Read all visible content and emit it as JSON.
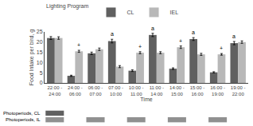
{
  "chart_data": {
    "type": "bar",
    "xlabel": "Time",
    "ylabel": "Food Intake per bird, g",
    "legend_title": "Lighting Program",
    "legend": "upper left",
    "grid": false,
    "categories": [
      "22:00 - 24:00",
      "24:00 - 06:00",
      "06:00 - 07:00",
      "07:00 - 10:00",
      "10:00 - 11:00",
      "11:00 - 14:00",
      "14:00 - 15:00",
      "15:00 - 16:00",
      "16:00 - 19:00",
      "19:00 - 22:00"
    ],
    "series": [
      {
        "name": "CL",
        "color": "#606060",
        "values": [
          22.0,
          3.5,
          14.5,
          20.5,
          6.0,
          23.5,
          7.0,
          21.5,
          5.2,
          19.5
        ],
        "errors": [
          0.7,
          0.3,
          0.6,
          0.9,
          0.4,
          0.8,
          0.4,
          0.7,
          0.3,
          0.8
        ],
        "annotations": [
          null,
          null,
          null,
          "a",
          null,
          "a",
          null,
          "a",
          null,
          "a"
        ]
      },
      {
        "name": "IEL",
        "color": "#b8b8b8",
        "values": [
          22.0,
          15.5,
          16.5,
          8.0,
          14.8,
          14.8,
          17.5,
          14.0,
          14.0,
          20.0
        ],
        "errors": [
          0.6,
          0.5,
          0.6,
          0.5,
          0.5,
          0.5,
          0.6,
          0.5,
          0.4,
          0.6
        ],
        "annotations": [
          null,
          "+",
          null,
          null,
          "+",
          null,
          "+",
          null,
          "+",
          null
        ]
      }
    ],
    "photoperiods": [
      {
        "label": "Photoperiods, CL",
        "color": "#606060",
        "categories": [
          "22:00 - 24:00"
        ]
      },
      {
        "label": "Photoperiods, IL",
        "color": "#909090",
        "categories": [
          "22:00 - 24:00",
          "06:00 - 07:00",
          "10:00 - 11:00",
          "14:00 - 15:00",
          "16:00 - 19:00"
        ]
      }
    ],
    "ylim": [
      0,
      25
    ],
    "yticks": [
      0,
      5,
      10,
      15,
      20,
      25
    ]
  }
}
